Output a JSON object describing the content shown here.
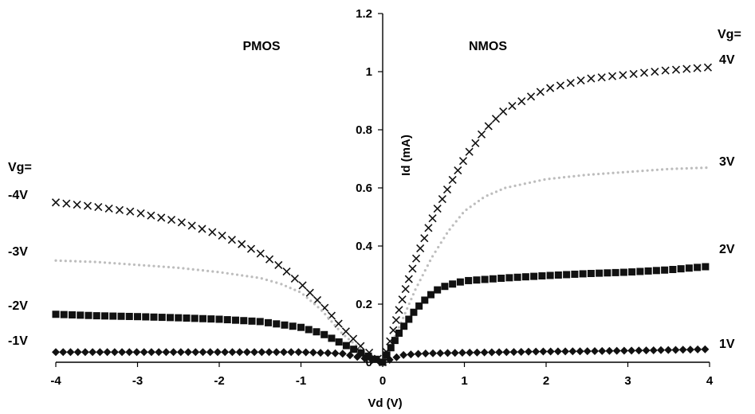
{
  "chart_data": {
    "type": "scatter",
    "xlabel": "Vd (V)",
    "ylabel": "Id (mA)",
    "xlim": [
      -4,
      4
    ],
    "ylim": [
      0,
      1.2
    ],
    "x_ticks": [
      "-4",
      "-3",
      "-2",
      "-1",
      "0",
      "1",
      "2",
      "3",
      "4"
    ],
    "y_ticks": [
      "1.2",
      "1",
      "0.8",
      "0.6",
      "0.4",
      "0.2",
      "0"
    ],
    "region_labels": {
      "left": "PMOS",
      "right": "NMOS"
    },
    "legend_left": {
      "header": "Vg=",
      "labels": [
        "-4V",
        "-3V",
        "-2V",
        "-1V"
      ]
    },
    "legend_right": {
      "header": "Vg=",
      "labels": [
        "4V",
        "3V",
        "2V",
        "1V"
      ]
    },
    "series": [
      {
        "marker": "x",
        "color": "#111111",
        "x": [
          -4,
          -3.5,
          -3,
          -2.5,
          -2,
          -1.75,
          -1.5,
          -1.25,
          -1,
          -0.75,
          -0.5,
          -0.25,
          0
        ],
        "y": [
          0.55,
          0.535,
          0.515,
          0.485,
          0.44,
          0.41,
          0.375,
          0.33,
          0.27,
          0.2,
          0.12,
          0.05,
          0
        ]
      },
      {
        "marker": "dot",
        "color": "#bdbdbd",
        "x": [
          -4,
          -3.5,
          -3,
          -2.5,
          -2,
          -1.5,
          -1.25,
          -1,
          -0.75,
          -0.5,
          -0.25,
          0
        ],
        "y": [
          0.35,
          0.345,
          0.335,
          0.325,
          0.31,
          0.29,
          0.27,
          0.24,
          0.18,
          0.1,
          0.04,
          0
        ]
      },
      {
        "marker": "square",
        "color": "#111111",
        "x": [
          -4,
          -3.5,
          -3,
          -2.5,
          -2,
          -1.5,
          -1.25,
          -1,
          -0.75,
          -0.5,
          -0.25,
          0
        ],
        "y": [
          0.165,
          0.16,
          0.157,
          0.153,
          0.148,
          0.14,
          0.13,
          0.12,
          0.1,
          0.065,
          0.03,
          0
        ]
      },
      {
        "marker": "diamond",
        "color": "#111111",
        "x": [
          -4,
          -3.5,
          -3,
          -2.5,
          -2,
          -1.5,
          -1,
          -0.5,
          0
        ],
        "y": [
          0.035,
          0.035,
          0.035,
          0.035,
          0.035,
          0.035,
          0.035,
          0.03,
          0
        ]
      },
      {
        "marker": "x",
        "color": "#111111",
        "x": [
          0,
          0.1,
          0.2,
          0.3,
          0.4,
          0.5,
          0.6,
          0.8,
          1.0,
          1.25,
          1.5,
          2,
          2.5,
          3,
          3.5,
          4
        ],
        "y": [
          0,
          0.08,
          0.18,
          0.27,
          0.35,
          0.42,
          0.49,
          0.6,
          0.7,
          0.8,
          0.87,
          0.94,
          0.975,
          0.99,
          1.005,
          1.015
        ]
      },
      {
        "marker": "dot",
        "color": "#bdbdbd",
        "x": [
          0,
          0.2,
          0.4,
          0.6,
          0.8,
          1.0,
          1.25,
          1.5,
          2,
          2.5,
          3,
          3.5,
          4
        ],
        "y": [
          0,
          0.12,
          0.25,
          0.36,
          0.45,
          0.52,
          0.57,
          0.6,
          0.63,
          0.645,
          0.655,
          0.665,
          0.67
        ]
      },
      {
        "marker": "square",
        "color": "#111111",
        "x": [
          0,
          0.1,
          0.2,
          0.3,
          0.4,
          0.5,
          0.6,
          0.7,
          0.8,
          1.0,
          1.5,
          2,
          2.5,
          3,
          3.5,
          4
        ],
        "y": [
          0,
          0.05,
          0.1,
          0.14,
          0.18,
          0.21,
          0.235,
          0.255,
          0.265,
          0.28,
          0.29,
          0.298,
          0.305,
          0.31,
          0.318,
          0.33
        ]
      },
      {
        "marker": "diamond",
        "color": "#111111",
        "x": [
          0,
          0.25,
          0.5,
          1,
          1.5,
          2,
          2.5,
          3,
          3.5,
          4
        ],
        "y": [
          0,
          0.025,
          0.03,
          0.033,
          0.035,
          0.037,
          0.038,
          0.04,
          0.042,
          0.045
        ]
      }
    ]
  }
}
